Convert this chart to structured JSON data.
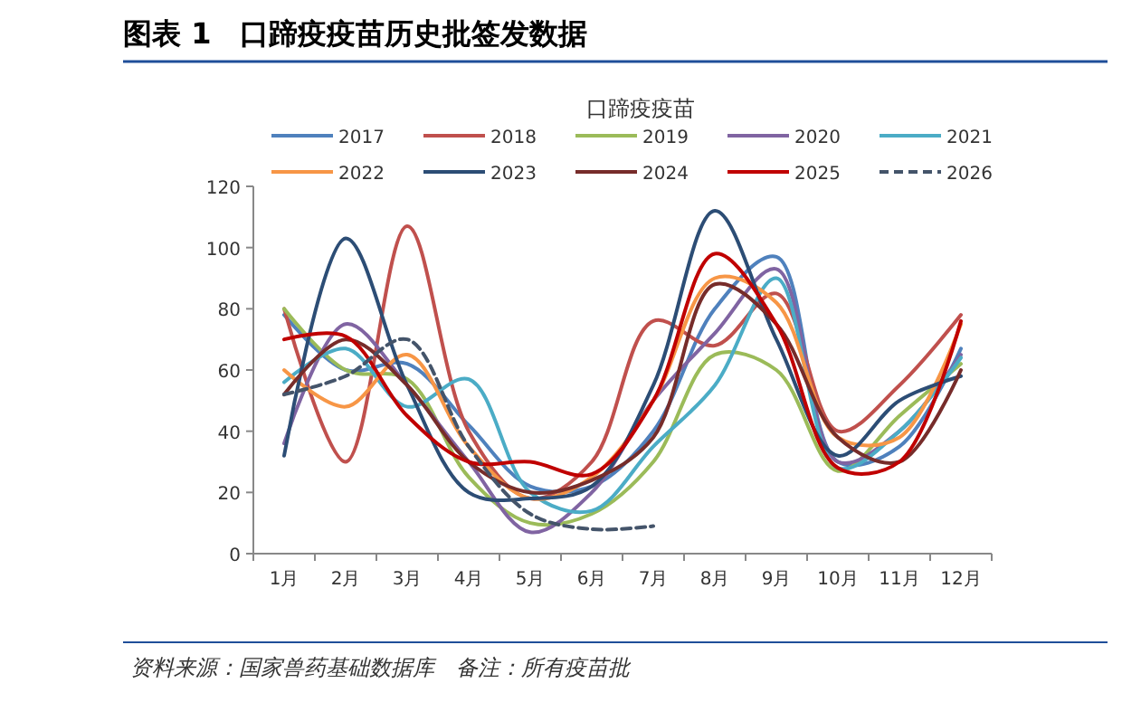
{
  "chart_data": {
    "type": "line",
    "title": "图表 1　口蹄疫疫苗历史批签发数据",
    "subtitle": "口蹄疫疫苗",
    "categories": [
      "1月",
      "2月",
      "3月",
      "4月",
      "5月",
      "6月",
      "7月",
      "8月",
      "9月",
      "10月",
      "11月",
      "12月"
    ],
    "series": [
      {
        "name": "2017",
        "color": "#4f81bd",
        "values": [
          78,
          60,
          62,
          42,
          22,
          22,
          40,
          80,
          97,
          30,
          35,
          67
        ]
      },
      {
        "name": "2018",
        "color": "#c0504d",
        "values": [
          80,
          30,
          107,
          40,
          18,
          30,
          76,
          68,
          85,
          40,
          55,
          78
        ]
      },
      {
        "name": "2019",
        "color": "#9bbb59",
        "values": [
          80,
          60,
          57,
          25,
          10,
          13,
          30,
          65,
          60,
          27,
          45,
          62
        ]
      },
      {
        "name": "2020",
        "color": "#8064a2",
        "values": [
          36,
          75,
          55,
          30,
          7,
          20,
          50,
          72,
          93,
          30,
          40,
          65
        ]
      },
      {
        "name": "2021",
        "color": "#4bacc6",
        "values": [
          56,
          67,
          48,
          57,
          20,
          14,
          35,
          55,
          90,
          28,
          40,
          64
        ]
      },
      {
        "name": "2022",
        "color": "#f79646",
        "values": [
          60,
          48,
          65,
          35,
          18,
          25,
          50,
          90,
          82,
          38,
          38,
          75
        ]
      },
      {
        "name": "2023",
        "color": "#2c4d75",
        "values": [
          32,
          103,
          55,
          20,
          18,
          22,
          55,
          112,
          70,
          32,
          50,
          58
        ]
      },
      {
        "name": "2024",
        "color": "#772c2a",
        "values": [
          52,
          70,
          55,
          30,
          20,
          24,
          38,
          88,
          75,
          38,
          30,
          60
        ]
      },
      {
        "name": "2025",
        "color": "#c00000",
        "values": [
          70,
          71,
          45,
          30,
          30,
          26,
          50,
          98,
          75,
          28,
          30,
          76
        ]
      },
      {
        "name": "2026",
        "color": "#44546a",
        "line_style": "dashed",
        "values": [
          52,
          58,
          70,
          35,
          13,
          8,
          9,
          null,
          null,
          null,
          null,
          null
        ]
      }
    ],
    "ylim": [
      0,
      120
    ],
    "yticks": [
      0,
      20,
      40,
      60,
      80,
      100,
      120
    ],
    "grid": false,
    "legend": "top",
    "line_style": "solid",
    "marker": "none",
    "annotations": [
      "资料来源：国家兽药基础数据库　备注：所有疫苗批"
    ]
  }
}
